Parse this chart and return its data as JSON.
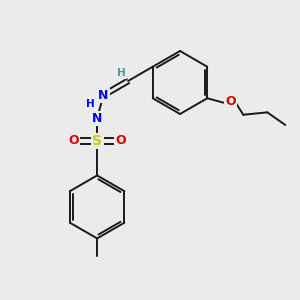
{
  "background_color": "#ebebeb",
  "bond_color": "#1a1a1a",
  "N_color": "#0000ee",
  "O_color": "#dd0000",
  "S_color": "#cccc00",
  "H_color": "#4a9a9a",
  "figsize": [
    3.0,
    3.0
  ],
  "dpi": 100,
  "xlim": [
    0,
    10
  ],
  "ylim": [
    0,
    10
  ]
}
